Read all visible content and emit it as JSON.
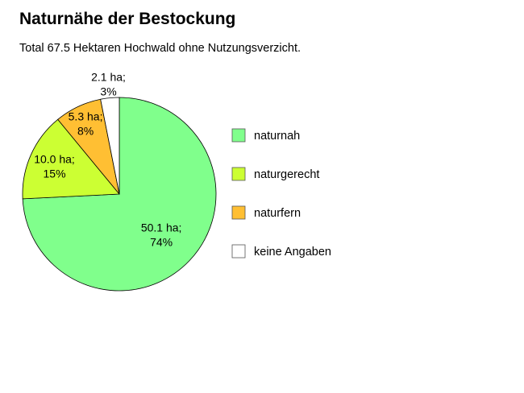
{
  "chart_data": {
    "type": "pie",
    "title": "Naturnähe der Bestockung",
    "subtitle": "Total 67.5 Hektaren Hochwald ohne Nutzungsverzicht.",
    "legend_position": "right",
    "slices": [
      {
        "name": "naturnah",
        "value": 50.1,
        "label_line1": "50.1 ha;",
        "label_line2": "74%",
        "color": "#80ff8c"
      },
      {
        "name": "naturgerecht",
        "value": 10.0,
        "label_line1": "10.0 ha;",
        "label_line2": "15%",
        "color": "#ccff33"
      },
      {
        "name": "naturfern",
        "value": 5.3,
        "label_line1": "5.3 ha;",
        "label_line2": "8%",
        "color": "#ffbf33"
      },
      {
        "name": "keine Angaben",
        "value": 2.1,
        "label_line1": "2.1 ha;",
        "label_line2": "3%",
        "color": "#ffffff"
      }
    ]
  }
}
